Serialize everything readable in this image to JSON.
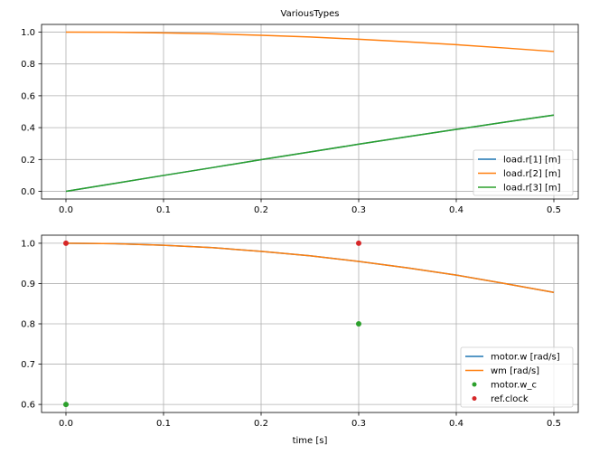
{
  "figure": {
    "title": "VariousTypes",
    "xlabel": "time [s]"
  },
  "colors": {
    "blue": "#1f77b4",
    "orange": "#ff7f0e",
    "green": "#2ca02c",
    "red": "#d62728",
    "grid": "#b0b0b0"
  },
  "chart_data": [
    {
      "type": "line",
      "title": "VariousTypes",
      "xlabel": "",
      "ylabel": "",
      "x": [
        0.0,
        0.05,
        0.1,
        0.15,
        0.2,
        0.25,
        0.3,
        0.35,
        0.4,
        0.45,
        0.5
      ],
      "xticks": [
        "0.0",
        "0.1",
        "0.2",
        "0.3",
        "0.4",
        "0.5"
      ],
      "yticks": [
        "0.0",
        "0.2",
        "0.4",
        "0.6",
        "0.8",
        "1.0"
      ],
      "xlim": [
        -0.025,
        0.525
      ],
      "ylim": [
        -0.048,
        1.048
      ],
      "grid": true,
      "legend_position": "lower right",
      "series": [
        {
          "name": "load.r[1] [m]",
          "color": "#1f77b4",
          "values": [
            0.0,
            0.05,
            0.1,
            0.149,
            0.199,
            0.247,
            0.296,
            0.343,
            0.389,
            0.435,
            0.479
          ]
        },
        {
          "name": "load.r[2] [m]",
          "color": "#ff7f0e",
          "values": [
            1.0,
            0.999,
            0.995,
            0.989,
            0.98,
            0.969,
            0.955,
            0.939,
            0.921,
            0.9,
            0.878
          ]
        },
        {
          "name": "load.r[3] [m]",
          "color": "#2ca02c",
          "values": [
            0.0,
            0.05,
            0.1,
            0.149,
            0.199,
            0.247,
            0.296,
            0.343,
            0.389,
            0.435,
            0.479
          ]
        }
      ]
    },
    {
      "type": "line",
      "title": "",
      "xlabel": "time [s]",
      "ylabel": "",
      "x": [
        0.0,
        0.05,
        0.1,
        0.15,
        0.2,
        0.25,
        0.3,
        0.35,
        0.4,
        0.45,
        0.5
      ],
      "xticks": [
        "0.0",
        "0.1",
        "0.2",
        "0.3",
        "0.4",
        "0.5"
      ],
      "yticks": [
        "0.6",
        "0.7",
        "0.8",
        "0.9",
        "1.0"
      ],
      "xlim": [
        -0.025,
        0.525
      ],
      "ylim": [
        0.58,
        1.02
      ],
      "grid": true,
      "legend_position": "lower right",
      "series": [
        {
          "name": "motor.w [rad/s]",
          "color": "#1f77b4",
          "values": [
            1.0,
            0.999,
            0.995,
            0.989,
            0.98,
            0.969,
            0.955,
            0.939,
            0.921,
            0.9,
            0.878
          ]
        },
        {
          "name": "wm [rad/s]",
          "color": "#ff7f0e",
          "values": [
            1.0,
            0.999,
            0.995,
            0.989,
            0.98,
            0.969,
            0.955,
            0.939,
            0.921,
            0.9,
            0.878
          ]
        },
        {
          "name": "motor.w_c",
          "color": "#2ca02c",
          "marker": "dot",
          "points": [
            [
              0.0,
              0.6
            ],
            [
              0.3,
              0.8
            ]
          ]
        },
        {
          "name": "ref.clock",
          "color": "#d62728",
          "marker": "dot",
          "points": [
            [
              0.0,
              1.0
            ],
            [
              0.3,
              1.0
            ]
          ]
        }
      ]
    }
  ]
}
